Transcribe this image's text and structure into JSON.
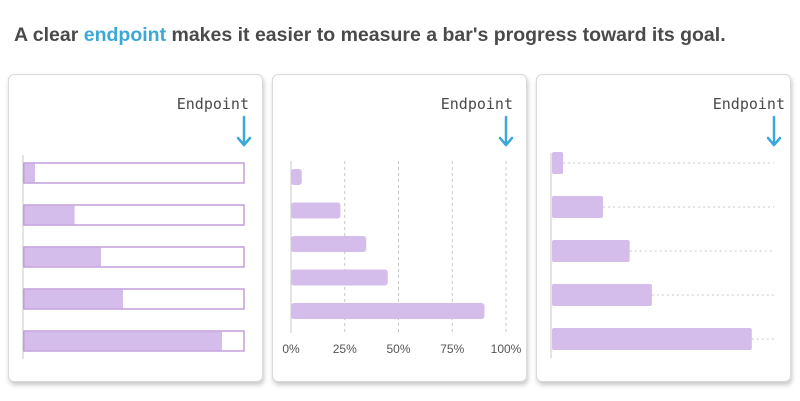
{
  "headline": {
    "before": "A clear ",
    "accent": "endpoint",
    "after": " makes it easier to measure a bar's progress toward its goal."
  },
  "colors": {
    "bar_fill": "#d5bdeb",
    "bar_outline": "#b890d6",
    "arrow": "#3aa8d8",
    "accent_text": "#3aa8d8",
    "headline_text": "#4a4a4a",
    "grid": "#c8c8c8"
  },
  "icons": [
    "down-arrow-icon"
  ],
  "chart_data": [
    {
      "type": "bar",
      "orientation": "horizontal",
      "style": "bars-inside-outlined-track",
      "endpoint_label": "Endpoint",
      "values": [
        0.05,
        0.23,
        0.35,
        0.45,
        0.9
      ],
      "xlim": [
        0,
        1
      ],
      "grid": false
    },
    {
      "type": "bar",
      "orientation": "horizontal",
      "style": "bars-with-vertical-gridlines",
      "endpoint_label": "Endpoint",
      "values": [
        0.05,
        0.23,
        0.35,
        0.45,
        0.9
      ],
      "xlim": [
        0,
        1
      ],
      "x_tick_labels": [
        "0%",
        "25%",
        "50%",
        "75%",
        "100%"
      ],
      "grid": true
    },
    {
      "type": "bar",
      "orientation": "horizontal",
      "style": "bars-with-dotted-guide-lines",
      "endpoint_label": "Endpoint",
      "values": [
        0.05,
        0.23,
        0.35,
        0.45,
        0.9
      ],
      "xlim": [
        0,
        1
      ],
      "grid": false
    }
  ]
}
